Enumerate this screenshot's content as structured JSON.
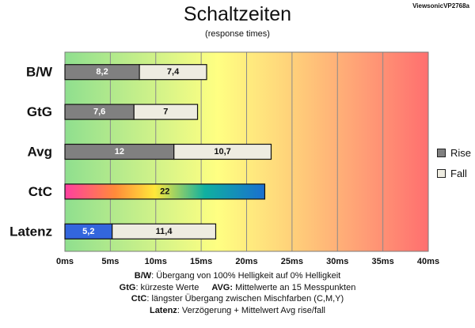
{
  "corner_label": "ViewsonicVP2768a",
  "legend": [
    {
      "label": "Rise",
      "color": "#808080"
    },
    {
      "label": "Fall",
      "color": "#eeece1"
    }
  ],
  "notes": {
    "line1_key": "B/W",
    "line1_text": ":  Übergang von 100% Helligkeit auf 0% Helligkeit",
    "line2_key_a": "GtG",
    "line2_text_a": ": kürzeste  Werte",
    "line2_key_b": "AVG:",
    "line2_text_b": " Mittelwerte  an 15 Messpunkten",
    "line3_key": "CtC",
    "line3_text": ": längster Übergang  zwischen Mischfarben  (C,M,Y)",
    "line4_key": "Latenz",
    "line4_text": ": Verzögerung  + Mittelwert Avg rise/fall"
  },
  "colors": {
    "rise": "#808080",
    "fall": "#eeece1",
    "latency": "#3366dd",
    "grid": "#888888",
    "bg_green": "#90e090",
    "bg_yellow": "#ffff80",
    "bg_red": "#ff7070"
  },
  "chart_data": {
    "type": "bar",
    "orientation": "horizontal",
    "stacked": true,
    "title": "Schaltzeiten",
    "subtitle": "(response times)",
    "categories": [
      "B/W",
      "GtG",
      "Avg",
      "CtC",
      "Latenz"
    ],
    "series": [
      {
        "name": "Rise",
        "values": [
          8.2,
          7.6,
          12,
          null,
          null
        ],
        "labels": [
          "8,2",
          "7,6",
          "12",
          null,
          null
        ]
      },
      {
        "name": "Fall",
        "values": [
          7.4,
          7,
          10.7,
          null,
          11.4
        ],
        "labels": [
          "7,4",
          "7",
          "10,7",
          null,
          "11,4"
        ]
      },
      {
        "values": [
          null,
          null,
          null,
          22,
          null
        ],
        "labels": [
          null,
          null,
          null,
          "22",
          null
        ]
      },
      {
        "values": [
          null,
          null,
          null,
          null,
          5.2
        ],
        "labels": [
          null,
          null,
          null,
          null,
          "5,2"
        ]
      }
    ],
    "xlim": [
      0,
      40
    ],
    "xticks": [
      0,
      5,
      10,
      15,
      20,
      25,
      30,
      35,
      40
    ],
    "xtick_labels": [
      "0ms",
      "5ms",
      "10ms",
      "15ms",
      "20ms",
      "25ms",
      "30ms",
      "35ms",
      "40ms"
    ],
    "grid": true,
    "legend_position": "right"
  }
}
